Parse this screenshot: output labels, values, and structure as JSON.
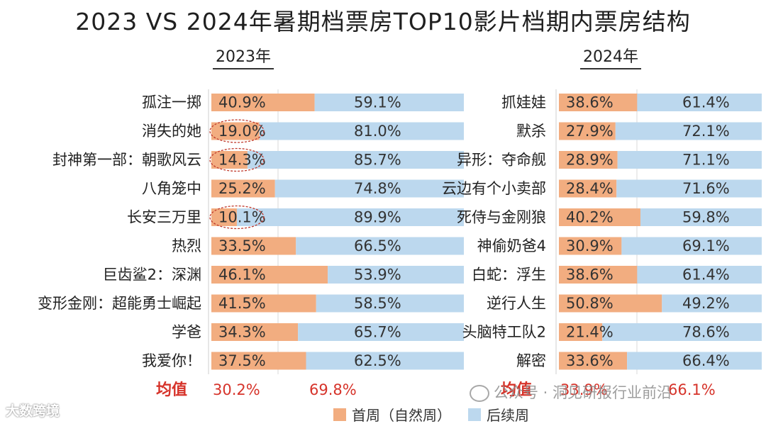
{
  "title": "2023 VS 2024年暑期档票房TOP10影片档期内票房结构",
  "chart_data": [
    {
      "type": "bar",
      "stacked": true,
      "orientation": "horizontal",
      "panel_title": "2023年",
      "categories": [
        "孤注一掷",
        "消失的她",
        "封神第一部：朝歌风云",
        "八角笼中",
        "长安三万里",
        "热烈",
        "巨齿鲨2：深渊",
        "变形金刚：超能勇士崛起",
        "学爸",
        "我爱你！"
      ],
      "series": [
        {
          "name": "首周（自然周）",
          "values": [
            40.9,
            19.0,
            14.3,
            25.2,
            10.1,
            33.5,
            46.1,
            41.5,
            34.3,
            37.5
          ]
        },
        {
          "name": "后续周",
          "values": [
            59.1,
            81.0,
            85.7,
            74.8,
            89.9,
            66.5,
            53.9,
            58.5,
            65.7,
            62.5
          ]
        }
      ],
      "labels_first": [
        "40.9%",
        "19.0%",
        "14.3%",
        "25.2%",
        "10.1%",
        "33.5%",
        "46.1%",
        "41.5%",
        "34.3%",
        "37.5%"
      ],
      "labels_follow": [
        "59.1%",
        "81.0%",
        "85.7%",
        "74.8%",
        "89.9%",
        "66.5%",
        "53.9%",
        "58.5%",
        "65.7%",
        "62.5%"
      ],
      "highlighted": [
        "19.0%",
        "14.3%",
        "10.1%"
      ],
      "average_label": "均值",
      "average_first": "30.2%",
      "average_follow": "69.8%"
    },
    {
      "type": "bar",
      "stacked": true,
      "orientation": "horizontal",
      "panel_title": "2024年",
      "categories": [
        "抓娃娃",
        "默杀",
        "异形：夺命舰",
        "云边有个小卖部",
        "死侍与金刚狼",
        "神偷奶爸4",
        "白蛇：浮生",
        "逆行人生",
        "头脑特工队2",
        "解密"
      ],
      "series": [
        {
          "name": "首周（自然周）",
          "values": [
            38.6,
            27.9,
            28.9,
            28.4,
            40.2,
            30.9,
            38.6,
            50.8,
            21.4,
            33.6
          ]
        },
        {
          "name": "后续周",
          "values": [
            61.4,
            72.1,
            71.1,
            71.6,
            59.8,
            69.1,
            61.4,
            49.2,
            78.6,
            66.4
          ]
        }
      ],
      "labels_first": [
        "38.6%",
        "27.9%",
        "28.9%",
        "28.4%",
        "40.2%",
        "30.9%",
        "38.6%",
        "50.8%",
        "21.4%",
        "33.6%"
      ],
      "labels_follow": [
        "61.4%",
        "72.1%",
        "71.1%",
        "71.6%",
        "59.8%",
        "69.1%",
        "61.4%",
        "49.2%",
        "78.6%",
        "66.4%"
      ],
      "average_label": "均值",
      "average_first": "33.9%",
      "average_follow": "66.1%"
    }
  ],
  "legend": {
    "first": "首周（自然周）",
    "follow": "后续周"
  },
  "colors": {
    "first": "#f2ad80",
    "follow": "#bcd8ee",
    "highlight": "#c0392b",
    "average": "#d6332a"
  },
  "watermarks": {
    "left": "大数跨境",
    "right": "公众号 · 洞见研报行业前沿"
  }
}
